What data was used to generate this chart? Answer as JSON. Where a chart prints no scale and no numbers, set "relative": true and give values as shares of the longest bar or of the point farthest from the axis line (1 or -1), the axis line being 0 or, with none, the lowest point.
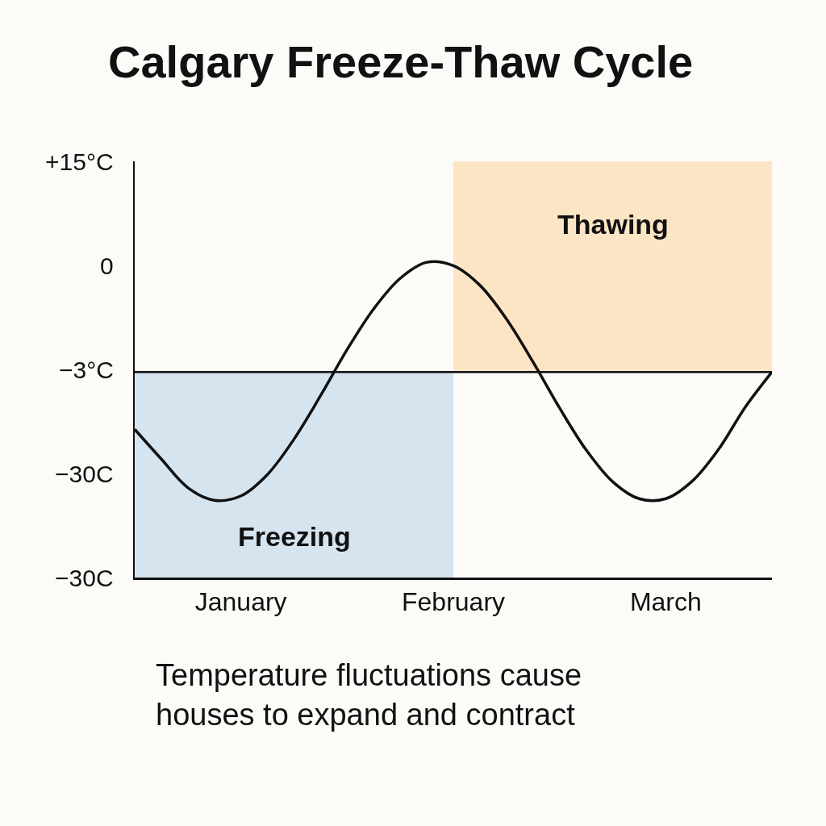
{
  "chart_data": {
    "type": "line",
    "title": "Calgary Freeze-Thaw Cycle",
    "relative": true,
    "categories": [
      null,
      null,
      null,
      null,
      "January",
      null,
      null,
      null,
      null,
      null,
      null,
      null,
      "February",
      null,
      null,
      null,
      null,
      null,
      null,
      null,
      "March",
      null,
      null,
      null,
      null
    ],
    "series": [
      {
        "color": "#111111",
        "values": [
          0.47,
          0.376,
          0.285,
          0.245,
          0.259,
          0.327,
          0.439,
          0.577,
          0.723,
          0.852,
          0.949,
          1,
          0.989,
          0.927,
          0.82,
          0.684,
          0.538,
          0.405,
          0.304,
          0.25,
          0.25,
          0.306,
          0.408,
          0.541,
          0.652
        ]
      }
    ],
    "ref_lines": [
      {
        "axis": "y",
        "value": 0.652,
        "color": "#111111"
      }
    ],
    "bands": [
      {
        "axis": "y",
        "from": 0,
        "to": 0.652,
        "label": "Freezing",
        "color": "#d6e4f0"
      },
      {
        "axis": "y",
        "from": 0.652,
        "to": 1.32,
        "label": "Thawing",
        "color": "#fce5c4"
      }
    ],
    "annotations": [
      "+15°C",
      "0",
      "−3°C",
      "−30C",
      "−30C",
      "Temperature fluctuations cause\nhouses to expand and contract"
    ],
    "line_style": "solid",
    "marker": "none"
  }
}
